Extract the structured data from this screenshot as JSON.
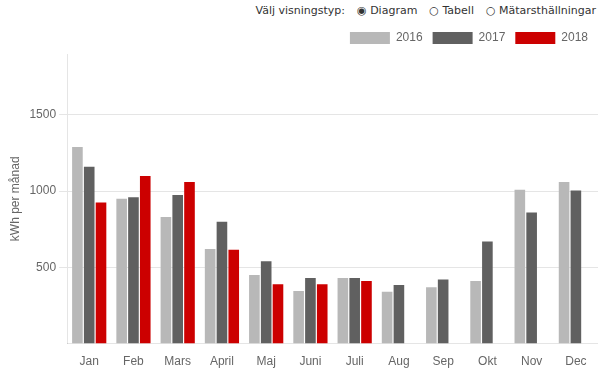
{
  "chart_data": {
    "type": "bar",
    "ylabel": "kWh per månad",
    "annotations": [
      "Välj visningstyp:",
      "◉ Diagram",
      "○ Tabell",
      "○ Mätarsthällningar"
    ],
    "categories": [
      "Jan",
      "Feb",
      "Mars",
      "April",
      "Maj",
      "Juni",
      "Juli",
      "Aug",
      "Sep",
      "Okt",
      "Nov",
      "Dec"
    ],
    "series": [
      {
        "name": "2016",
        "color": "#b8b8b8",
        "values": [
          1290,
          950,
          830,
          620,
          450,
          345,
          430,
          340,
          370,
          410,
          1010,
          1060
        ]
      },
      {
        "name": "2017",
        "color": "#606060",
        "values": [
          1160,
          960,
          975,
          800,
          540,
          430,
          430,
          385,
          420,
          670,
          860,
          1005
        ]
      },
      {
        "name": "2018",
        "color": "#cc0000",
        "values": [
          925,
          1100,
          1060,
          615,
          390,
          390,
          410,
          null,
          null,
          null,
          null,
          null
        ]
      }
    ],
    "ylim": [
      0,
      1900
    ],
    "yticks": [
      500,
      1000,
      1500
    ],
    "grid": true,
    "legend": "upper right"
  }
}
